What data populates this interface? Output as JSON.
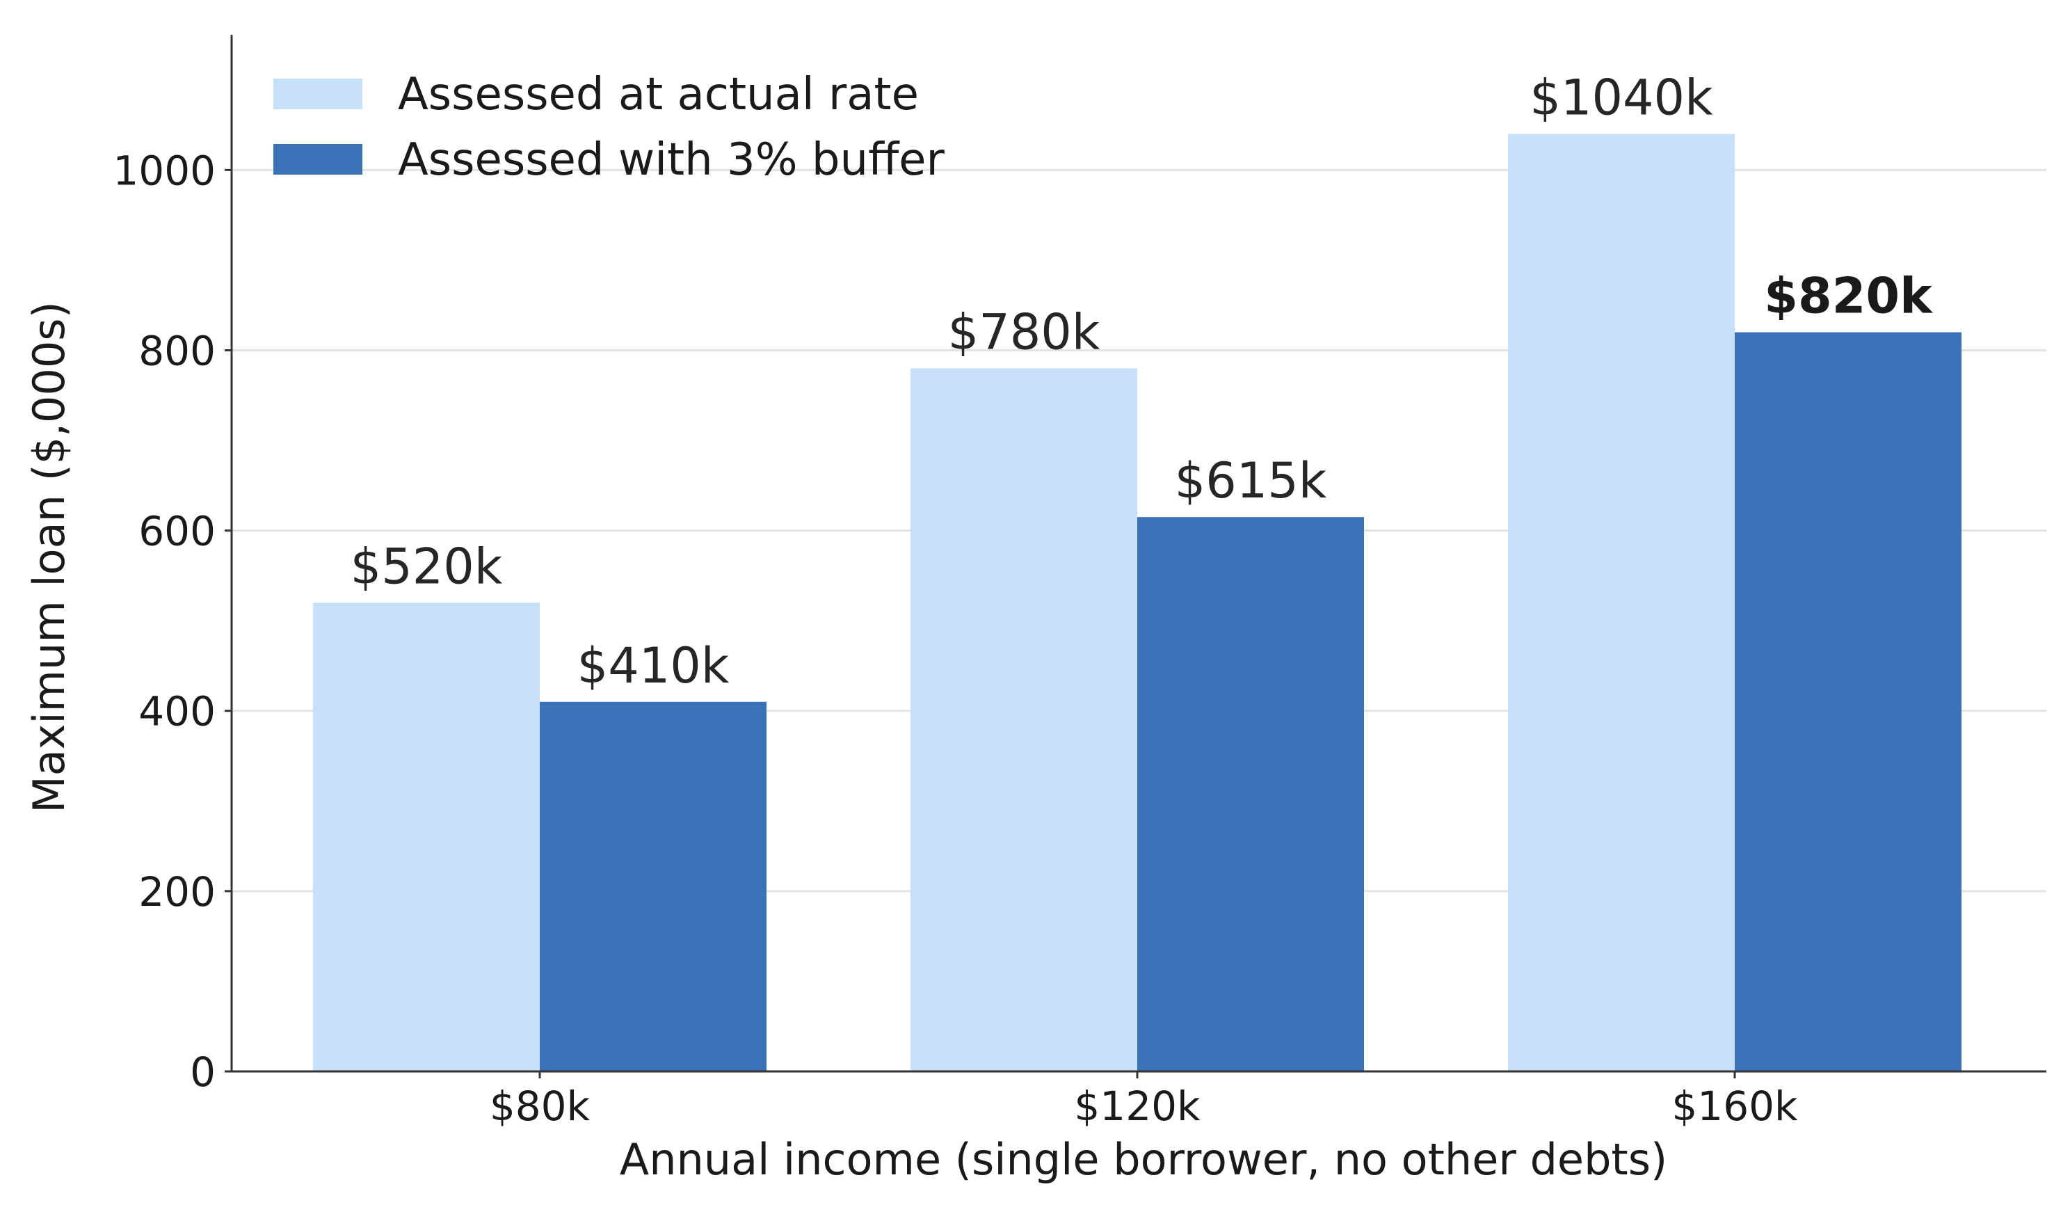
{
  "chart_data": {
    "type": "bar",
    "categories": [
      "$80k",
      "$120k",
      "$160k"
    ],
    "series": [
      {
        "name": "Assessed at actual rate",
        "values": [
          520,
          780,
          1040
        ],
        "labels": [
          "$520k",
          "$780k",
          "$1040k"
        ],
        "color": "#c5e0f8"
      },
      {
        "name": "Assessed with 3% buffer",
        "values": [
          410,
          615,
          820
        ],
        "labels": [
          "$410k",
          "$615k",
          "$820k"
        ],
        "color": "#3a72b8"
      }
    ],
    "emphasized_label": "$820k",
    "xlabel": "Annual income (single borrower, no other debts)",
    "ylabel": "Maximum loan ($,000s)",
    "ylim": [
      0,
      1150
    ],
    "yticks": [
      0,
      200,
      400,
      600,
      800,
      1000
    ],
    "grid": "horizontal",
    "legend_position": "top-left"
  }
}
